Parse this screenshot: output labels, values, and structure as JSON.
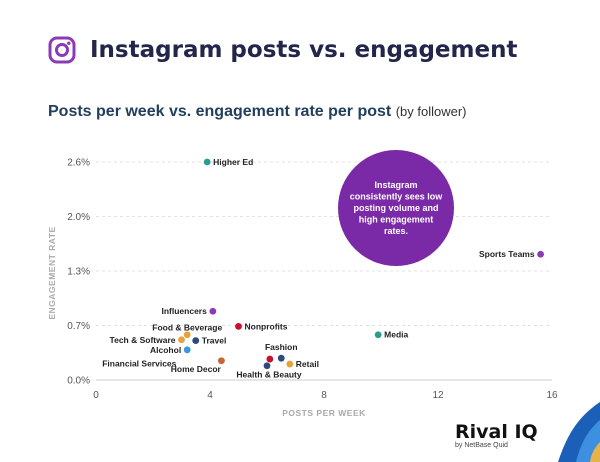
{
  "header": {
    "title": "Instagram posts vs. engagement"
  },
  "subtitle": {
    "main": "Posts per week vs. engagement rate per post",
    "note": "(by follower)"
  },
  "callout": {
    "lines": [
      "Instagram",
      "consistently sees low",
      "posting volume and",
      "high engagement",
      "rates."
    ]
  },
  "logo": {
    "name": "Rival IQ",
    "sub": "by NetBase Quid"
  },
  "colors": {
    "purple": "#8a3bb5",
    "teal": "#2a9d8f",
    "red": "#c8102e",
    "navy": "#2b4a7a",
    "orange": "#e8a23b",
    "blue": "#3a9ad9",
    "brown": "#c9643a",
    "bubble": "#7b2aa7"
  },
  "chart_data": {
    "type": "scatter",
    "xlabel": "POSTS PER WEEK",
    "ylabel": "ENGAGEMENT RATE",
    "xlim": [
      0,
      16
    ],
    "ylim": [
      0,
      2.6
    ],
    "xticks": [
      0,
      4,
      8,
      12,
      16
    ],
    "xtick_labels": [
      "0",
      "4",
      "8",
      "12",
      "16"
    ],
    "yticks": [
      0,
      0.65,
      1.3,
      1.95,
      2.6
    ],
    "ytick_labels": [
      "0.0%",
      "0.7%",
      "1.3%",
      "2.0%",
      "2.6%"
    ],
    "grid": true,
    "points": [
      {
        "label": "Higher Ed",
        "x": 3.9,
        "y": 2.6,
        "color": "teal",
        "side": "right"
      },
      {
        "label": "Sports Teams",
        "x": 15.6,
        "y": 1.5,
        "color": "purple",
        "side": "left"
      },
      {
        "label": "Influencers",
        "x": 4.1,
        "y": 0.82,
        "color": "purple",
        "side": "left"
      },
      {
        "label": "Nonprofits",
        "x": 5.0,
        "y": 0.64,
        "color": "red",
        "side": "right"
      },
      {
        "label": "Food & Beverage",
        "x": 3.2,
        "y": 0.54,
        "color": "orange",
        "side": "leftup"
      },
      {
        "label": "Media",
        "x": 9.9,
        "y": 0.54,
        "color": "teal",
        "side": "right"
      },
      {
        "label": "Tech & Software",
        "x": 3.0,
        "y": 0.48,
        "color": "orange",
        "side": "left"
      },
      {
        "label": "Travel",
        "x": 3.5,
        "y": 0.47,
        "color": "navy",
        "side": "right"
      },
      {
        "label": "Alcohol",
        "x": 3.2,
        "y": 0.36,
        "color": "blue",
        "side": "left"
      },
      {
        "label": "Fashion",
        "x": 6.5,
        "y": 0.26,
        "color": "navy",
        "side": "up"
      },
      {
        "label": "Financial Services",
        "x": 4.4,
        "y": 0.23,
        "color": "brown",
        "side": "leftbelow"
      },
      {
        "label": "Home Decor",
        "x": 6.1,
        "y": 0.25,
        "color": "red",
        "side": "home"
      },
      {
        "label": "Retail",
        "x": 6.8,
        "y": 0.19,
        "color": "orange",
        "side": "right"
      },
      {
        "label": "Health & Beauty",
        "x": 6.0,
        "y": 0.17,
        "color": "navy",
        "side": "below"
      }
    ]
  }
}
